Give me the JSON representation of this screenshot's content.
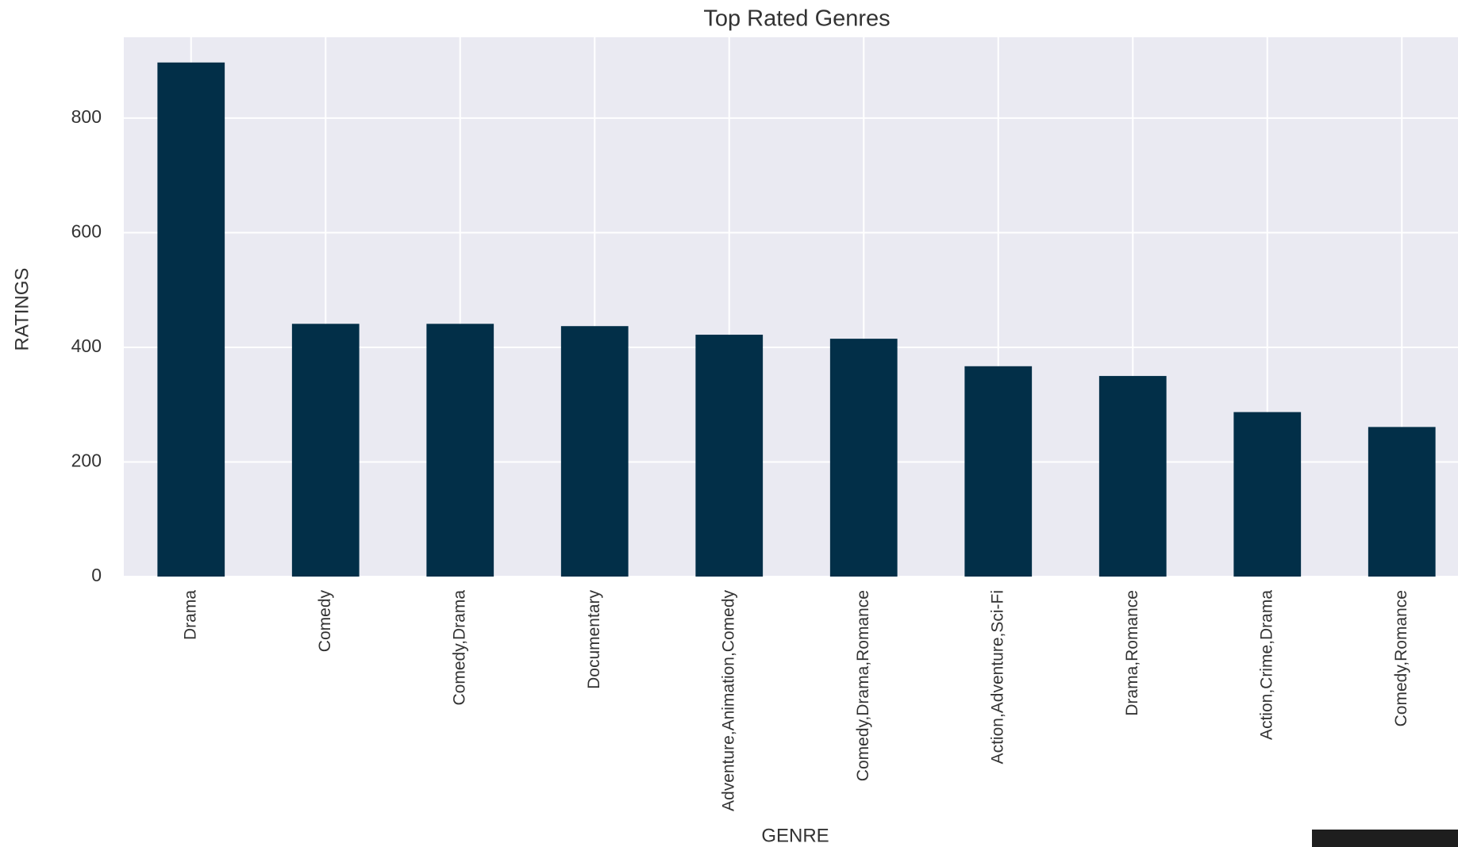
{
  "chart_data": {
    "type": "bar",
    "title": "Top Rated Genres",
    "x_label": "GENRE",
    "y_label": "RATINGS",
    "categories": [
      "Drama",
      "Comedy",
      "Comedy,Drama",
      "Documentary",
      "Adventure,Animation,Comedy",
      "Comedy,Drama,Romance",
      "Action,Adventure,Sci-Fi",
      "Drama,Romance",
      "Action,Crime,Drama",
      "Comedy,Romance"
    ],
    "values": [
      897,
      441,
      441,
      437,
      422,
      415,
      367,
      350,
      287,
      261
    ],
    "color": "#022f48",
    "ylim": [
      0,
      941
    ],
    "yticks": [
      0,
      200,
      400,
      600,
      800
    ],
    "grid": true
  }
}
